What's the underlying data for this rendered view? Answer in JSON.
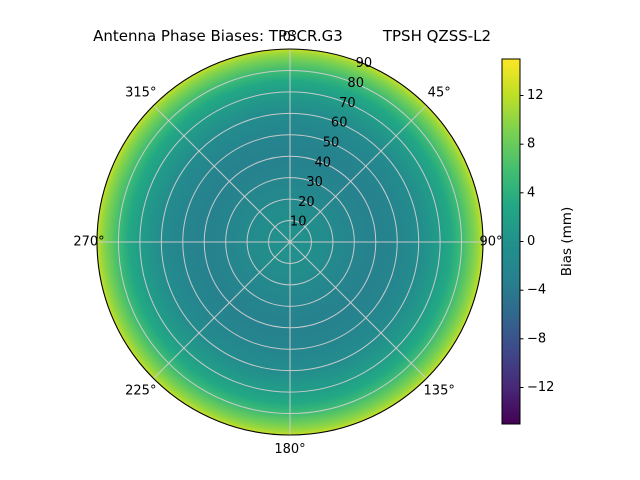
{
  "title": {
    "left": "Antenna Phase Biases: TPSCR.G3",
    "right": "TPSH QZSS-L2"
  },
  "polar": {
    "theta_labels": [
      {
        "angle": 0,
        "label": "0°"
      },
      {
        "angle": 45,
        "label": "45°"
      },
      {
        "angle": 90,
        "label": "90°"
      },
      {
        "angle": 135,
        "label": "135°"
      },
      {
        "angle": 180,
        "label": "180°"
      },
      {
        "angle": 225,
        "label": "225°"
      },
      {
        "angle": 270,
        "label": "270°"
      },
      {
        "angle": 315,
        "label": "315°"
      }
    ],
    "r_tick_labels": [
      "10",
      "20",
      "30",
      "40",
      "50",
      "60",
      "70",
      "80",
      "90"
    ],
    "r_label_angle_deg": 22.5,
    "grid_color": "#cdcdcd",
    "spine_color": "#000000",
    "text_color": "#000000"
  },
  "colorbar": {
    "label": "Bias (mm)",
    "tick_values": [
      12,
      8,
      4,
      0,
      -4,
      -8,
      -12
    ],
    "tick_labels": [
      "12",
      "8",
      "4",
      "0",
      "−4",
      "−8",
      "−12"
    ],
    "vmin": -15,
    "vmax": 15
  },
  "colormap": {
    "name": "viridis",
    "stops": [
      [
        0.0,
        "#440154"
      ],
      [
        0.1,
        "#482878"
      ],
      [
        0.2,
        "#3e4989"
      ],
      [
        0.3,
        "#31688e"
      ],
      [
        0.4,
        "#26828e"
      ],
      [
        0.5,
        "#21918c"
      ],
      [
        0.6,
        "#22a884"
      ],
      [
        0.7,
        "#44bf70"
      ],
      [
        0.8,
        "#7ad151"
      ],
      [
        0.9,
        "#bddf26"
      ],
      [
        1.0,
        "#fde725"
      ]
    ]
  },
  "chart_data": {
    "type": "heatmap",
    "projection": "polar",
    "title": "Antenna Phase Biases: TPSCR.G3        TPSH QZSS-L2",
    "antenna": "TPSCR.G3",
    "signal": "TPSH QZSS-L2",
    "angular_axis": {
      "ticks_deg": [
        0,
        45,
        90,
        135,
        180,
        225,
        270,
        315
      ],
      "zero_location": "top",
      "direction": "clockwise"
    },
    "radial_axis": {
      "ticks": [
        10,
        20,
        30,
        40,
        50,
        60,
        70,
        80,
        90
      ],
      "range": [
        0,
        90
      ]
    },
    "color_axis": {
      "label": "Bias (mm)",
      "ticks": [
        12,
        8,
        4,
        0,
        -4,
        -8,
        -12
      ],
      "range": [
        -15,
        15
      ],
      "colormap": "viridis"
    },
    "azimuthally_symmetric": true,
    "radial_profile": {
      "zenith_deg": [
        0,
        10,
        20,
        30,
        40,
        50,
        60,
        70,
        75,
        80,
        85,
        88,
        90
      ],
      "bias_mm": [
        0,
        -0.5,
        -1.5,
        -2.5,
        -3,
        -2.5,
        -1,
        1.5,
        3,
        5.5,
        8.5,
        10.5,
        12.5
      ]
    },
    "grid": true,
    "legend": "none"
  }
}
